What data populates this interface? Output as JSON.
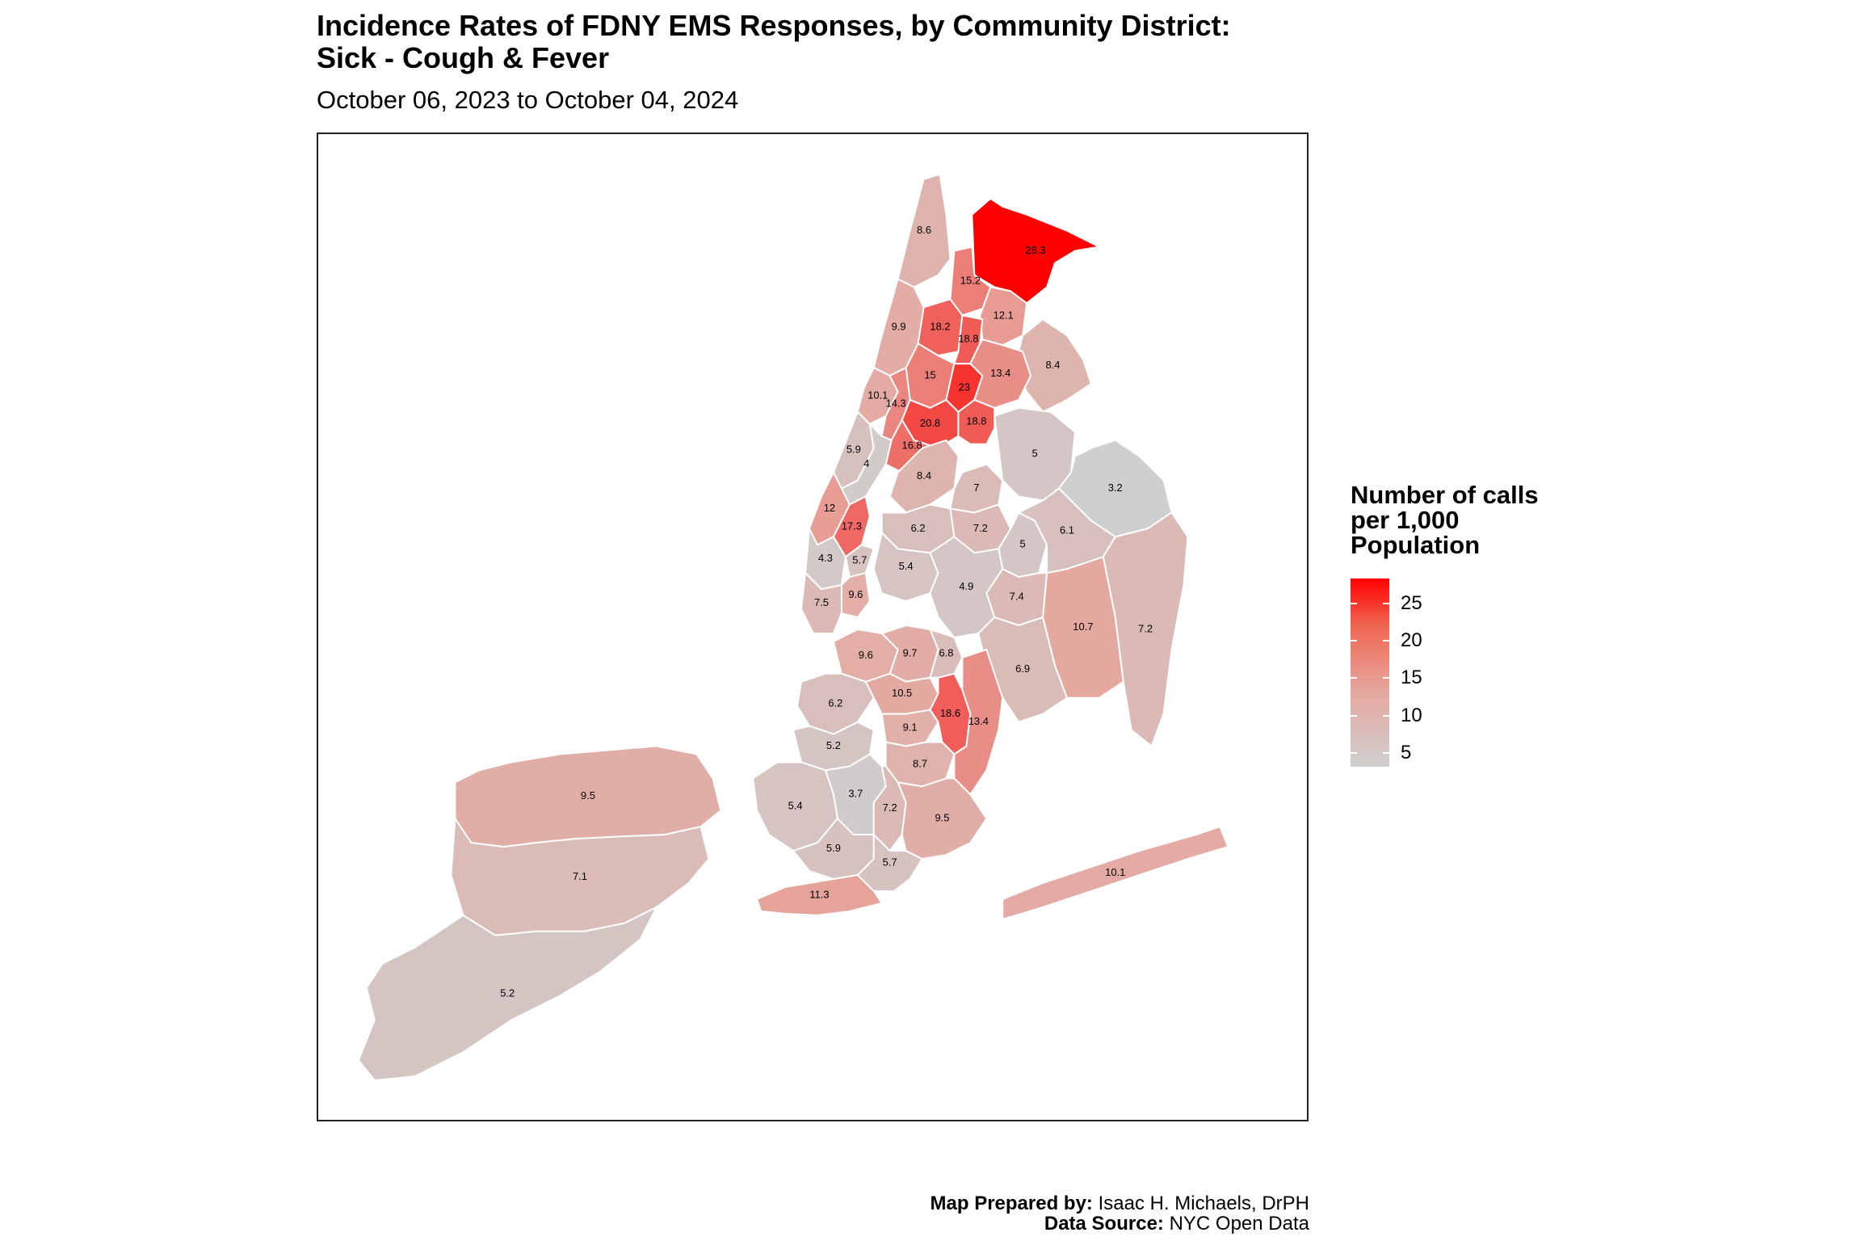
{
  "title_line1": "Incidence Rates of FDNY EMS Responses, by Community District:",
  "title_line2": "Sick - Cough & Fever",
  "subtitle": "October 06, 2023 to October 04, 2024",
  "legend": {
    "title_line1": "Number of calls",
    "title_line2": "per 1,000",
    "title_line3": "Population",
    "ticks": [
      "25",
      "20",
      "15",
      "10",
      "5"
    ],
    "tick_values": [
      25,
      20,
      15,
      10,
      5
    ],
    "range": [
      3.2,
      28.3
    ],
    "colors": {
      "low": "#cfcfcf",
      "mid": "#e5a89f",
      "high": "#ff0000"
    }
  },
  "credits": {
    "prepared_label": "Map Prepared by:",
    "prepared_value": "Isaac H. Michaels, DrPH",
    "source_label": "Data Source:",
    "source_value": "NYC Open Data"
  },
  "districts": [
    {
      "id": "bronx-riverdale",
      "value": 8.6,
      "label": "8.6"
    },
    {
      "id": "bronx-wakefield",
      "value": 28.3,
      "label": "28.3"
    },
    {
      "id": "bronx-williamsbridge",
      "value": 15.2,
      "label": "15.2"
    },
    {
      "id": "bronx-pelham",
      "value": 12.1,
      "label": "12.1"
    },
    {
      "id": "manhattan-washington-heights",
      "value": 9.9,
      "label": "9.9"
    },
    {
      "id": "bronx-university-heights",
      "value": 18.2,
      "label": "18.2"
    },
    {
      "id": "bronx-fordham",
      "value": 18.8,
      "label": "18.8"
    },
    {
      "id": "bronx-belmont",
      "value": 15,
      "label": "15"
    },
    {
      "id": "bronx-west-farms",
      "value": 23,
      "label": "23"
    },
    {
      "id": "bronx-parkchester",
      "value": 13.4,
      "label": "13.4"
    },
    {
      "id": "bronx-throgs-neck",
      "value": 8.4,
      "label": "8.4"
    },
    {
      "id": "manhattan-central-harlem",
      "value": 10.1,
      "label": "10.1"
    },
    {
      "id": "manhattan-east-harlem",
      "value": 14.3,
      "label": "14.3"
    },
    {
      "id": "bronx-morrisania",
      "value": 20.8,
      "label": "20.8"
    },
    {
      "id": "bronx-hunts-point",
      "value": 18.8,
      "label": "18.8"
    },
    {
      "id": "bronx-mott-haven",
      "value": 16.8,
      "label": "16.8"
    },
    {
      "id": "manhattan-upper-west-side",
      "value": 5.9,
      "label": "5.9"
    },
    {
      "id": "manhattan-upper-east-side",
      "value": 4,
      "label": "4"
    },
    {
      "id": "manhattan-clinton",
      "value": 12,
      "label": "12"
    },
    {
      "id": "manhattan-midtown",
      "value": 17.3,
      "label": "17.3"
    },
    {
      "id": "manhattan-stuyvesant",
      "value": 5.7,
      "label": "5.7"
    },
    {
      "id": "manhattan-greenwich",
      "value": 4.3,
      "label": "4.3"
    },
    {
      "id": "manhattan-lower-east-side",
      "value": 9.6,
      "label": "9.6"
    },
    {
      "id": "manhattan-financial",
      "value": 7.5,
      "label": "7.5"
    },
    {
      "id": "queens-astoria",
      "value": 8.4,
      "label": "8.4"
    },
    {
      "id": "queens-jackson-heights",
      "value": 7,
      "label": "7"
    },
    {
      "id": "queens-sunnyside",
      "value": 6.2,
      "label": "6.2"
    },
    {
      "id": "queens-elmhurst",
      "value": 7.2,
      "label": "7.2"
    },
    {
      "id": "queens-flushing",
      "value": 5,
      "label": "5"
    },
    {
      "id": "queens-bayside",
      "value": 3.2,
      "label": "3.2"
    },
    {
      "id": "queens-fresh-meadows",
      "value": 5,
      "label": "5"
    },
    {
      "id": "queens-hillcrest",
      "value": 6.1,
      "label": "6.1"
    },
    {
      "id": "queens-queens-village",
      "value": 7.2,
      "label": "7.2"
    },
    {
      "id": "queens-jamaica",
      "value": 10.7,
      "label": "10.7"
    },
    {
      "id": "queens-kew-gardens",
      "value": 7.4,
      "label": "7.4"
    },
    {
      "id": "queens-ridgewood",
      "value": 5.4,
      "label": "5.4"
    },
    {
      "id": "queens-forest-hills",
      "value": 4.9,
      "label": "4.9"
    },
    {
      "id": "queens-south-ozone-park",
      "value": 6.9,
      "label": "6.9"
    },
    {
      "id": "queens-rockaway",
      "value": 10.1,
      "label": "10.1"
    },
    {
      "id": "brooklyn-williamsburg",
      "value": 9.6,
      "label": "9.6"
    },
    {
      "id": "brooklyn-bushwick",
      "value": 9.7,
      "label": "9.7"
    },
    {
      "id": "brooklyn-east-new-york-north",
      "value": 6.8,
      "label": "6.8"
    },
    {
      "id": "brooklyn-park-slope",
      "value": 6.2,
      "label": "6.2"
    },
    {
      "id": "brooklyn-crown-heights",
      "value": 10.5,
      "label": "10.5"
    },
    {
      "id": "brooklyn-brownsville",
      "value": 18.6,
      "label": "18.6"
    },
    {
      "id": "brooklyn-east-new-york",
      "value": 13.4,
      "label": "13.4"
    },
    {
      "id": "brooklyn-flatbush",
      "value": 9.1,
      "label": "9.1"
    },
    {
      "id": "brooklyn-sunset-park",
      "value": 5.2,
      "label": "5.2"
    },
    {
      "id": "brooklyn-east-flatbush",
      "value": 8.7,
      "label": "8.7"
    },
    {
      "id": "brooklyn-borough-park",
      "value": 3.7,
      "label": "3.7"
    },
    {
      "id": "brooklyn-midwood",
      "value": 7.2,
      "label": "7.2"
    },
    {
      "id": "brooklyn-bay-ridge",
      "value": 5.4,
      "label": "5.4"
    },
    {
      "id": "brooklyn-canarsie",
      "value": 9.5,
      "label": "9.5"
    },
    {
      "id": "brooklyn-bensonhurst",
      "value": 5.9,
      "label": "5.9"
    },
    {
      "id": "brooklyn-sheepshead-bay",
      "value": 5.7,
      "label": "5.7"
    },
    {
      "id": "brooklyn-coney-island",
      "value": 11.3,
      "label": "11.3"
    },
    {
      "id": "si-north-shore",
      "value": 9.5,
      "label": "9.5"
    },
    {
      "id": "si-mid-island",
      "value": 7.1,
      "label": "7.1"
    },
    {
      "id": "si-south-shore",
      "value": 5.2,
      "label": "5.2"
    }
  ]
}
